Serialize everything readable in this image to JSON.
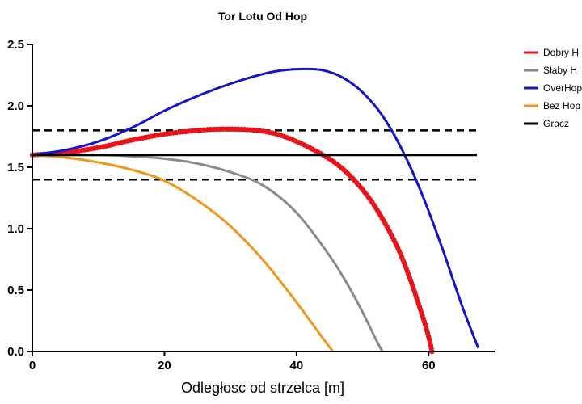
{
  "chart_data": {
    "type": "line",
    "title": "Tor Lotu Od Hop",
    "xlabel": "Odległosc od strzelca [m]",
    "ylabel": "",
    "xlim": [
      0,
      70
    ],
    "ylim": [
      0,
      2.5
    ],
    "xticks": [
      0,
      20,
      40,
      60
    ],
    "yticks": [
      0.0,
      0.5,
      1.0,
      1.5,
      2.0,
      2.5
    ],
    "xtick_labels": [
      "0",
      "20",
      "40",
      "60"
    ],
    "ytick_labels": [
      "0.0",
      "0.5",
      "1.0",
      "1.5",
      "2.0",
      "2.5"
    ],
    "grid": false,
    "legend_position": "right",
    "series": [
      {
        "name": "Dobry H",
        "color": "#e8141c",
        "markers": true,
        "x": [
          0,
          5,
          10,
          15,
          20,
          25,
          28,
          31,
          34,
          37,
          40,
          43,
          46,
          49,
          52,
          55,
          57,
          59,
          60,
          60.5
        ],
        "y": [
          1.6,
          1.62,
          1.66,
          1.72,
          1.77,
          1.8,
          1.81,
          1.81,
          1.8,
          1.77,
          1.71,
          1.63,
          1.53,
          1.38,
          1.17,
          0.88,
          0.62,
          0.3,
          0.12,
          0.0
        ]
      },
      {
        "name": "Słaby H",
        "color": "#8a8a8a",
        "markers": false,
        "x": [
          0,
          5,
          10,
          15,
          20,
          25,
          30,
          35,
          40,
          45,
          48,
          50,
          52,
          53
        ],
        "y": [
          1.6,
          1.6,
          1.6,
          1.59,
          1.57,
          1.53,
          1.46,
          1.35,
          1.13,
          0.78,
          0.52,
          0.32,
          0.1,
          0.0
        ]
      },
      {
        "name": "OverHop",
        "color": "#1414cc",
        "markers": false,
        "x": [
          0,
          5,
          10,
          15,
          20,
          25,
          30,
          35,
          38,
          41,
          44,
          47,
          50,
          53,
          56,
          59,
          62,
          65,
          67.5
        ],
        "y": [
          1.6,
          1.64,
          1.71,
          1.82,
          1.96,
          2.08,
          2.18,
          2.26,
          2.29,
          2.3,
          2.29,
          2.23,
          2.11,
          1.92,
          1.64,
          1.28,
          0.85,
          0.38,
          0.03
        ]
      },
      {
        "name": "Bez Hop",
        "color": "#f0961e",
        "markers": false,
        "x": [
          0,
          5,
          10,
          15,
          20,
          25,
          30,
          35,
          40,
          43,
          45.5
        ],
        "y": [
          1.6,
          1.58,
          1.54,
          1.48,
          1.39,
          1.23,
          1.02,
          0.74,
          0.4,
          0.18,
          0.0
        ]
      },
      {
        "name": "Gracz",
        "color": "#000000",
        "markers": false,
        "x": [
          0,
          70
        ],
        "y": [
          1.6,
          1.6
        ]
      }
    ],
    "reference_lines": [
      {
        "y": 1.8,
        "style": "dashed",
        "color": "#000000"
      },
      {
        "y": 1.4,
        "style": "dashed",
        "color": "#000000"
      }
    ]
  }
}
